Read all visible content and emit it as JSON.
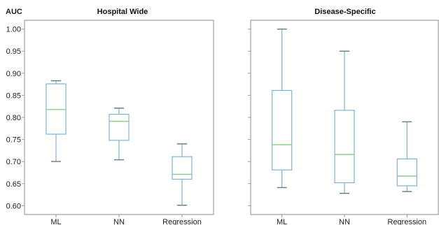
{
  "chart_data": [
    {
      "type": "boxplot",
      "title": "Hospital Wide",
      "ylabel": "AUC",
      "categories": [
        "ML",
        "NN",
        "Regression"
      ],
      "ylim": [
        0.58,
        1.02
      ],
      "yticks": [
        "1.00",
        "0.95",
        "0.90",
        "0.85",
        "0.80",
        "0.75",
        "0.70",
        "0.65",
        "0.60"
      ],
      "boxes": [
        {
          "name": "ML",
          "min": 0.7,
          "q1": 0.762,
          "median": 0.818,
          "q3": 0.876,
          "max": 0.883
        },
        {
          "name": "NN",
          "min": 0.704,
          "q1": 0.748,
          "median": 0.791,
          "q3": 0.807,
          "max": 0.821
        },
        {
          "name": "Regression",
          "min": 0.601,
          "q1": 0.66,
          "median": 0.671,
          "q3": 0.711,
          "max": 0.74
        }
      ]
    },
    {
      "type": "boxplot",
      "title": "Disease-Specific",
      "ylabel": "",
      "categories": [
        "ML",
        "NN",
        "Regression"
      ],
      "ylim": [
        0.58,
        1.02
      ],
      "boxes": [
        {
          "name": "ML",
          "min": 0.641,
          "q1": 0.681,
          "median": 0.738,
          "q3": 0.861,
          "max": 1.0
        },
        {
          "name": "NN",
          "min": 0.628,
          "q1": 0.652,
          "median": 0.716,
          "q3": 0.816,
          "max": 0.95
        },
        {
          "name": "Regression",
          "min": 0.632,
          "q1": 0.645,
          "median": 0.667,
          "q3": 0.706,
          "max": 0.79
        }
      ]
    }
  ],
  "colors": {
    "box": "#79b3dd",
    "median": "#8ed08e",
    "whisker": "#79b3dd",
    "cap": "#6f7f8f",
    "frame": "#8c8c8c",
    "tick": "#9a9a9a"
  }
}
